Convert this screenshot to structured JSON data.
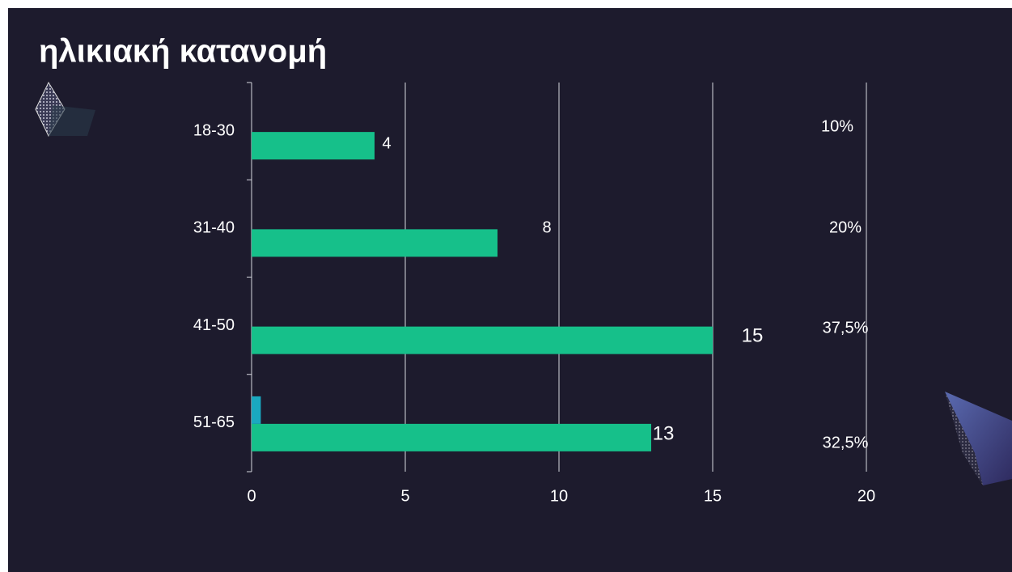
{
  "chart_data": {
    "type": "hbar",
    "title": "ηλικιακή κατανομή",
    "categories": [
      "18-30",
      "31-40",
      "41-50",
      "51-65"
    ],
    "series": [
      {
        "color": "#16c08a",
        "values": [
          4,
          8,
          15,
          13
        ]
      },
      {
        "color": "#1aa9c0",
        "values": [
          null,
          null,
          null,
          0.3
        ]
      }
    ],
    "percent_labels": [
      "10%",
      "20%",
      "37,5%",
      "32,5%"
    ],
    "xlim": [
      0,
      20
    ],
    "xticks": [
      0,
      5,
      10,
      15,
      20
    ],
    "grid": true
  }
}
